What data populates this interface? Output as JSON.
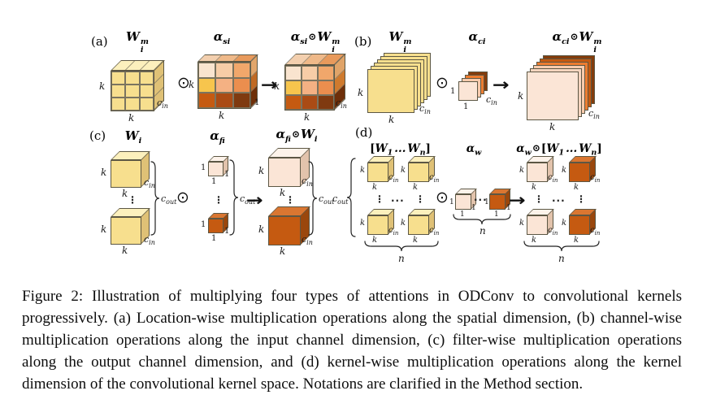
{
  "figure": {
    "panels": {
      "a": {
        "label": "(a)",
        "weight_title": {
          "W": "W",
          "sup": "m",
          "sub": "i"
        },
        "attention_title": {
          "alpha": "α",
          "sub": "si"
        },
        "result_title": {
          "alpha": "α",
          "alpha_sub": "si",
          "op": "⊙",
          "W": "W",
          "sup": "m",
          "sub": "i"
        }
      },
      "b": {
        "label": "(b)",
        "weight_title": {
          "W": "W",
          "sup": "m",
          "sub": "i"
        },
        "attention_title": {
          "alpha": "α",
          "sub": "ci"
        },
        "result_title": {
          "alpha": "α",
          "alpha_sub": "ci",
          "op": "⊙",
          "W": "W",
          "sup": "m",
          "sub": "i"
        }
      },
      "c": {
        "label": "(c)",
        "weight_title": {
          "W": "W",
          "sub": "i"
        },
        "attention_title": {
          "alpha": "α",
          "sub": "fi"
        },
        "result_title": {
          "alpha": "α",
          "alpha_sub": "fi",
          "op": "⊙",
          "W": "W",
          "sub": "i"
        }
      },
      "d": {
        "label": "(d)",
        "weight_title": {
          "lb": "[",
          "W1": "W",
          "sub1": "1",
          "dots": "...",
          "Wn": "W",
          "subn": "n",
          "rb": "]"
        },
        "attention_title": {
          "alpha": "α",
          "sub": "w"
        },
        "result_title": {
          "alpha": "α",
          "alpha_sub": "w",
          "op": "⊙",
          "lb": "[",
          "W1": "W",
          "sub1": "1",
          "dots": "...",
          "Wn": "W",
          "subn": "n",
          "rb": "]"
        }
      }
    },
    "dims": {
      "k": "k",
      "one": "1",
      "n": "n",
      "c": "c",
      "in": "in",
      "out": "out"
    },
    "ops": {
      "odot": "⊙",
      "arrow": "→",
      "vdots": "⋮",
      "cdots": "···"
    },
    "colors": {
      "kernel": {
        "front": "#f7df8e",
        "top": "#fcf0bd",
        "side": "#dfc176"
      },
      "light": {
        "front": "#fbe5d6",
        "top": "#fdf3ea",
        "side": "#e2c3ac"
      },
      "dark": {
        "front": "#c55a11",
        "top": "#da7631",
        "side": "#9a470d"
      },
      "alpha_spatial": {
        "front": [
          [
            "#f9e4cf",
            "#f7cda7",
            "#f1a76b"
          ],
          [
            "#f7c54d",
            "#f4b183",
            "#eb8e4e"
          ],
          [
            "#c55a11",
            "#aa4b15",
            "#7f3a10"
          ]
        ],
        "top": [
          "#f3cfae",
          "#efb989",
          "#e89a5c"
        ],
        "side": [
          "#e2a66b",
          "#c06a24",
          "#6e2f09"
        ]
      },
      "result_spatial": {
        "top": [
          "#f3cfae",
          "#efb989",
          "#e89a5c"
        ],
        "side": [
          "#e0a469",
          "#cf7a2e",
          "#6e2f09"
        ]
      },
      "channel_attention_layers": [
        "#fbe5d6",
        "#f8cbad",
        "#ed7d31",
        "#843c0c"
      ],
      "channel_result_layers": [
        "#fbe5d6",
        "#f5d5bf",
        "#f8cbad",
        "#ed7d31",
        "#c55a11",
        "#843c0c"
      ]
    }
  },
  "caption": {
    "text": "Figure 2: Illustration of multiplying four types of attentions in ODConv to convolutional kernels progressively. (a) Location-wise multiplication operations along the spatial dimension, (b) channel-wise multiplication operations along the input channel dimension, (c) filter-wise multiplication operations along the output channel dimension, and (d) kernel-wise multiplication operations along the kernel dimension of the convolutional kernel space. Notations are clarified in the Method section."
  }
}
